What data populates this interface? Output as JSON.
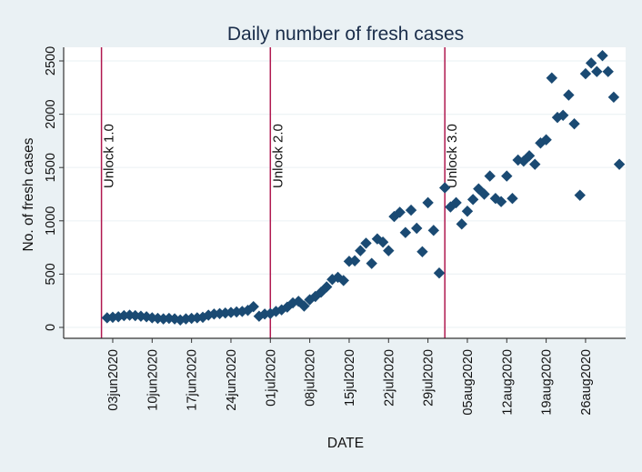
{
  "chart_data": {
    "type": "scatter",
    "title": "Daily number of fresh cases",
    "xlabel": "DATE",
    "ylabel": "No. of fresh cases",
    "ylim": [
      0,
      2600
    ],
    "yticks": [
      0,
      500,
      1000,
      1500,
      2000,
      2500
    ],
    "ytick_labels": [
      "0",
      "500",
      "1000",
      "1500",
      "2000",
      "2500"
    ],
    "x_start_date": "2020-06-01",
    "xlim_days": [
      -0.5,
      92.5
    ],
    "xticks_days": [
      2,
      9,
      16,
      23,
      30,
      37,
      44,
      51,
      58,
      65,
      72,
      79,
      86
    ],
    "xtick_labels": [
      "03jun2020",
      "10jun2020",
      "17jun2020",
      "24jun2020",
      "01jul2020",
      "08jul2020",
      "15jul2020",
      "22jul2020",
      "29jul2020",
      "05aug2020",
      "12aug2020",
      "19aug2020",
      "26aug2020"
    ],
    "grid": true,
    "marker": "diamond",
    "colors": {
      "marker": "#1a4a73",
      "vline": "#b0184f",
      "plot_bg": "#ffffff",
      "outer_bg": "#eaf1f4",
      "grid": "#eef3f5"
    },
    "annotations": [
      {
        "label": "Unlock 1.0",
        "day": 0
      },
      {
        "label": "Unlock 2.0",
        "day": 30
      },
      {
        "label": "Unlock 3.0",
        "day": 61
      }
    ],
    "series": [
      {
        "name": "Fresh cases",
        "first_day": 1,
        "values": [
          90,
          95,
          100,
          110,
          115,
          110,
          105,
          100,
          90,
          85,
          80,
          85,
          80,
          70,
          80,
          85,
          90,
          95,
          115,
          125,
          130,
          135,
          140,
          145,
          150,
          160,
          195,
          105,
          125,
          130,
          150,
          165,
          190,
          230,
          245,
          200,
          260,
          290,
          330,
          380,
          450,
          470,
          440,
          620,
          625,
          720,
          790,
          600,
          830,
          800,
          720,
          1040,
          1080,
          890,
          1100,
          930,
          710,
          1170,
          910,
          510,
          1310,
          1130,
          1170,
          970,
          1090,
          1200,
          1300,
          1250,
          1420,
          1210,
          1180,
          1420,
          1210,
          1570,
          1560,
          1610,
          1530,
          1730,
          1760,
          2340,
          1970,
          1990,
          2180,
          1910,
          1240,
          2380,
          2480,
          2400,
          2550,
          2400,
          2160,
          1530
        ]
      }
    ]
  }
}
